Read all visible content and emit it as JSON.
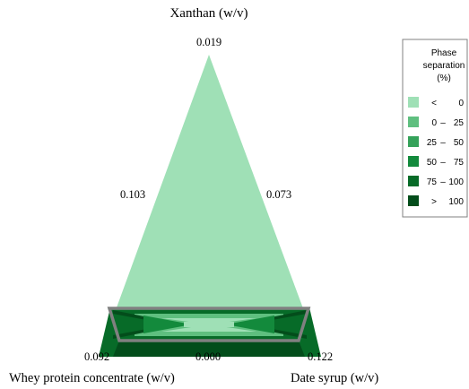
{
  "chart_data": {
    "type": "ternary-contour",
    "vertex_labels": {
      "top": "Xanthan (w/v)",
      "bottom_left": "Whey protein concentrate (w/v)",
      "bottom_right": "Date syrup (w/v)"
    },
    "tick_labels": {
      "top": "0.019",
      "left_edge": "0.103",
      "right_edge": "0.073",
      "bottom_left": "0.092",
      "bottom_center": "0.000",
      "bottom_right": "0.122"
    },
    "legend": {
      "title_lines": [
        "Phase",
        "separation",
        "(%)"
      ],
      "placement": "right",
      "bins": [
        {
          "lo": "<",
          "hi": "0",
          "color": "#9fe0b6"
        },
        {
          "lo": "0",
          "hi": "25",
          "color": "#5fbf7f"
        },
        {
          "lo": "25",
          "hi": "50",
          "color": "#35a25a"
        },
        {
          "lo": "50",
          "hi": "75",
          "color": "#138a3c"
        },
        {
          "lo": "75",
          "hi": "100",
          "color": "#076b28"
        },
        {
          "lo": ">",
          "hi": "100",
          "color": "#034d1b"
        }
      ]
    },
    "design_region_outline_color": "#808080"
  }
}
